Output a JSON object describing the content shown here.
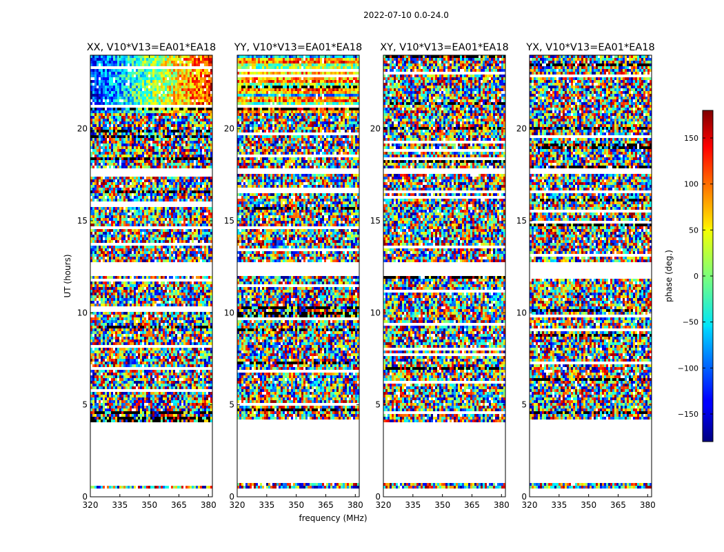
{
  "figure": {
    "suptitle": "2022-07-10 0.0-24.0"
  },
  "chart_data": [
    {
      "type": "heatmap",
      "title": "XX, V10*V13=EA01*EA18",
      "xlabel": "",
      "ylabel": "UT (hours)",
      "xlim": [
        320,
        382
      ],
      "ylim": [
        0,
        24
      ],
      "xticks": [
        320,
        335,
        350,
        365,
        380
      ],
      "yticks": [
        0,
        5,
        10,
        15,
        20
      ],
      "xtick_labels": [
        "320",
        "335",
        "350",
        "365",
        "380"
      ],
      "ytick_labels": [
        "0",
        "5",
        "10",
        "15",
        "20"
      ]
    },
    {
      "type": "heatmap",
      "title": "YY, V10*V13=EA01*EA18",
      "xlabel": "frequency (MHz)",
      "ylabel": "",
      "xlim": [
        320,
        382
      ],
      "ylim": [
        0,
        24
      ],
      "xticks": [
        320,
        335,
        350,
        365,
        380
      ],
      "yticks": [
        0,
        5,
        10,
        15,
        20
      ],
      "xtick_labels": [
        "320",
        "335",
        "350",
        "365",
        "380"
      ],
      "ytick_labels": [
        "0",
        "5",
        "10",
        "15",
        "20"
      ]
    },
    {
      "type": "heatmap",
      "title": "XY, V10*V13=EA01*EA18",
      "xlabel": "",
      "ylabel": "",
      "xlim": [
        320,
        382
      ],
      "ylim": [
        0,
        24
      ],
      "xticks": [
        320,
        335,
        350,
        365,
        380
      ],
      "yticks": [
        0,
        5,
        10,
        15,
        20
      ],
      "xtick_labels": [
        "320",
        "335",
        "350",
        "365",
        "380"
      ],
      "ytick_labels": [
        "0",
        "5",
        "10",
        "15",
        "20"
      ]
    },
    {
      "type": "heatmap",
      "title": "YX, V10*V13=EA01*EA18",
      "xlabel": "",
      "ylabel": "",
      "xlim": [
        320,
        382
      ],
      "ylim": [
        0,
        24
      ],
      "xticks": [
        320,
        335,
        350,
        365,
        380
      ],
      "yticks": [
        0,
        5,
        10,
        15,
        20
      ],
      "xtick_labels": [
        "320",
        "335",
        "350",
        "365",
        "380"
      ],
      "ytick_labels": [
        "0",
        "5",
        "10",
        "15",
        "20"
      ]
    }
  ],
  "colorbar": {
    "label": "phase (deg.)",
    "range": [
      -180,
      180
    ],
    "ticks": [
      150,
      100,
      50,
      0,
      -50,
      -100,
      -150
    ],
    "tick_labels": [
      "150",
      "100",
      "50",
      "0",
      "−50",
      "−100",
      "−150"
    ],
    "colormap": "jet"
  },
  "data_gaps_hours": [
    [
      0.8,
      4.0
    ],
    [
      11.95,
      12.8
    ],
    [
      17.55,
      17.85
    ]
  ],
  "colors": {
    "axes": "#000000",
    "background": "#ffffff"
  }
}
